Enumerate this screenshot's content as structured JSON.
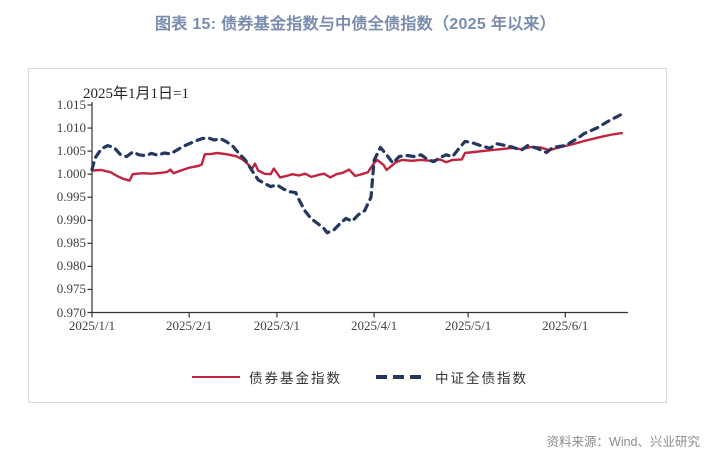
{
  "title": "图表 15: 债券基金指数与中债全债指数（2025 年以来）",
  "annotation": "2025年1月1日=1",
  "source": "资料来源：Wind、兴业研究",
  "colors": {
    "title": "#7a8cad",
    "fund_line": "#c2233e",
    "bond_line": "#24385f",
    "axis": "#333333",
    "tick_label": "#404040",
    "frame_border": "#d9d9d9",
    "source_text": "#8c8c8c"
  },
  "legend": [
    {
      "label": "债券基金指数",
      "style": "solid",
      "color": "#c2233e"
    },
    {
      "label": "中证全债指数",
      "style": "dashed",
      "color": "#24385f"
    }
  ],
  "chart_data": {
    "type": "line",
    "title": "图表 15: 债券基金指数与中债全债指数（2025 年以来）",
    "note": "2025年1月1日=1",
    "grid": false,
    "legend_position": "bottom",
    "x_axis": {
      "unit": "days since 2025-01-01",
      "range": [
        0,
        171
      ],
      "ticks": [
        {
          "day": 0,
          "label": "2025/1/1"
        },
        {
          "day": 31,
          "label": "2025/2/1"
        },
        {
          "day": 59,
          "label": "2025/3/1"
        },
        {
          "day": 90,
          "label": "2025/4/1"
        },
        {
          "day": 120,
          "label": "2025/5/1"
        },
        {
          "day": 151,
          "label": "2025/6/1"
        }
      ]
    },
    "y_axis": {
      "range": [
        0.97,
        1.015
      ],
      "ticks": [
        {
          "v": 1.015,
          "label": "1.015"
        },
        {
          "v": 1.01,
          "label": "1.010"
        },
        {
          "v": 1.005,
          "label": "1.005"
        },
        {
          "v": 1.0,
          "label": "1.000"
        },
        {
          "v": 0.995,
          "label": "0.995"
        },
        {
          "v": 0.99,
          "label": "0.990"
        },
        {
          "v": 0.985,
          "label": "0.985"
        },
        {
          "v": 0.98,
          "label": "0.980"
        },
        {
          "v": 0.975,
          "label": "0.975"
        },
        {
          "v": 0.97,
          "label": "0.970"
        }
      ]
    },
    "series": [
      {
        "name": "债券基金指数",
        "color": "#c2233e",
        "style": "solid",
        "points": [
          [
            0,
            1.0008
          ],
          [
            3,
            1.0009
          ],
          [
            6,
            1.0004
          ],
          [
            8,
            0.9996
          ],
          [
            10,
            0.999
          ],
          [
            12,
            0.9986
          ],
          [
            13,
            1.0
          ],
          [
            16,
            1.0002
          ],
          [
            19,
            1.0001
          ],
          [
            22,
            1.0003
          ],
          [
            24,
            1.0005
          ],
          [
            25,
            1.001
          ],
          [
            26,
            1.0002
          ],
          [
            28,
            1.0007
          ],
          [
            31,
            1.0014
          ],
          [
            34,
            1.0018
          ],
          [
            35,
            1.0021
          ],
          [
            36,
            1.0043
          ],
          [
            38,
            1.0044
          ],
          [
            40,
            1.0046
          ],
          [
            43,
            1.0043
          ],
          [
            46,
            1.0039
          ],
          [
            48,
            1.0032
          ],
          [
            50,
            1.002
          ],
          [
            51,
            1.0011
          ],
          [
            52,
            1.0023
          ],
          [
            53,
            1.0008
          ],
          [
            55,
            1.0001
          ],
          [
            57,
            1.0
          ],
          [
            58,
            1.0012
          ],
          [
            60,
            0.9993
          ],
          [
            62,
            0.9996
          ],
          [
            64,
            1.0
          ],
          [
            66,
            0.9997
          ],
          [
            68,
            1.0001
          ],
          [
            70,
            0.9994
          ],
          [
            72,
            0.9998
          ],
          [
            74,
            1.0001
          ],
          [
            76,
            0.9993
          ],
          [
            78,
            1.0
          ],
          [
            80,
            1.0003
          ],
          [
            82,
            1.001
          ],
          [
            84,
            0.9996
          ],
          [
            86,
            1.0
          ],
          [
            88,
            1.0004
          ],
          [
            90,
            1.0024
          ],
          [
            91,
            1.0031
          ],
          [
            93,
            1.002
          ],
          [
            94,
            1.0009
          ],
          [
            97,
            1.0026
          ],
          [
            99,
            1.0031
          ],
          [
            102,
            1.0029
          ],
          [
            105,
            1.0031
          ],
          [
            108,
            1.0029
          ],
          [
            111,
            1.0032
          ],
          [
            113,
            1.0026
          ],
          [
            115,
            1.0031
          ],
          [
            118,
            1.0032
          ],
          [
            119,
            1.0046
          ],
          [
            122,
            1.0048
          ],
          [
            126,
            1.0051
          ],
          [
            130,
            1.0054
          ],
          [
            134,
            1.0057
          ],
          [
            137,
            1.0054
          ],
          [
            140,
            1.0059
          ],
          [
            143,
            1.0058
          ],
          [
            146,
            1.0052
          ],
          [
            148,
            1.0056
          ],
          [
            151,
            1.0061
          ],
          [
            154,
            1.0066
          ],
          [
            157,
            1.0072
          ],
          [
            160,
            1.0077
          ],
          [
            163,
            1.0082
          ],
          [
            166,
            1.0086
          ],
          [
            169,
            1.0089
          ]
        ]
      },
      {
        "name": "中证全债指数",
        "color": "#24385f",
        "style": "dashed",
        "points": [
          [
            0,
            1.001
          ],
          [
            1,
            1.0035
          ],
          [
            3,
            1.0055
          ],
          [
            5,
            1.0062
          ],
          [
            7,
            1.0058
          ],
          [
            9,
            1.0043
          ],
          [
            11,
            1.0038
          ],
          [
            13,
            1.0048
          ],
          [
            15,
            1.0042
          ],
          [
            17,
            1.004
          ],
          [
            19,
            1.0045
          ],
          [
            21,
            1.0041
          ],
          [
            23,
            1.0046
          ],
          [
            25,
            1.0044
          ],
          [
            27,
            1.0052
          ],
          [
            29,
            1.006
          ],
          [
            31,
            1.0066
          ],
          [
            33,
            1.0072
          ],
          [
            35,
            1.0077
          ],
          [
            37,
            1.0079
          ],
          [
            39,
            1.0074
          ],
          [
            41,
            1.0077
          ],
          [
            43,
            1.007
          ],
          [
            45,
            1.006
          ],
          [
            47,
            1.0044
          ],
          [
            49,
            1.003
          ],
          [
            51,
            1.0008
          ],
          [
            53,
            0.9988
          ],
          [
            55,
            0.998
          ],
          [
            57,
            0.9973
          ],
          [
            59,
            0.9977
          ],
          [
            61,
            0.9968
          ],
          [
            63,
            0.9962
          ],
          [
            65,
            0.996
          ],
          [
            66,
            0.9945
          ],
          [
            68,
            0.992
          ],
          [
            70,
            0.9903
          ],
          [
            72,
            0.9893
          ],
          [
            74,
            0.9882
          ],
          [
            75,
            0.9873
          ],
          [
            77,
            0.9878
          ],
          [
            79,
            0.9892
          ],
          [
            81,
            0.9904
          ],
          [
            83,
            0.9898
          ],
          [
            85,
            0.9912
          ],
          [
            87,
            0.9921
          ],
          [
            89,
            0.995
          ],
          [
            90,
            1.003
          ],
          [
            92,
            1.0058
          ],
          [
            94,
            1.0042
          ],
          [
            96,
            1.0024
          ],
          [
            98,
            1.0038
          ],
          [
            100,
            1.0041
          ],
          [
            103,
            1.0038
          ],
          [
            105,
            1.0042
          ],
          [
            107,
            1.0032
          ],
          [
            109,
            1.0027
          ],
          [
            111,
            1.0036
          ],
          [
            113,
            1.0042
          ],
          [
            115,
            1.0038
          ],
          [
            117,
            1.0055
          ],
          [
            119,
            1.0071
          ],
          [
            121,
            1.0069
          ],
          [
            124,
            1.0062
          ],
          [
            127,
            1.0056
          ],
          [
            129,
            1.0066
          ],
          [
            132,
            1.0062
          ],
          [
            134,
            1.0059
          ],
          [
            137,
            1.0052
          ],
          [
            139,
            1.0062
          ],
          [
            142,
            1.0056
          ],
          [
            145,
            1.0047
          ],
          [
            147,
            1.0058
          ],
          [
            149,
            1.006
          ],
          [
            151,
            1.0062
          ],
          [
            153,
            1.007
          ],
          [
            155,
            1.0078
          ],
          [
            157,
            1.0088
          ],
          [
            159,
            1.0094
          ],
          [
            161,
            1.01
          ],
          [
            163,
            1.0108
          ],
          [
            165,
            1.0116
          ],
          [
            167,
            1.0123
          ],
          [
            169,
            1.013
          ]
        ]
      }
    ]
  }
}
